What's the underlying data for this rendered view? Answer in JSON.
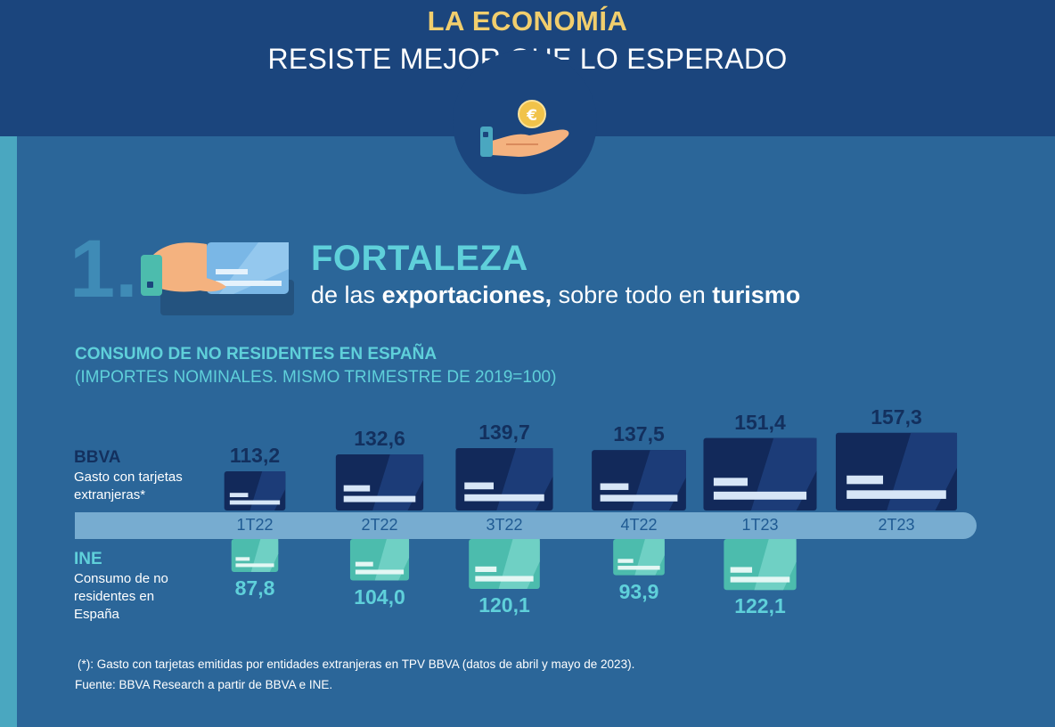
{
  "header": {
    "title_line1": "LA ECONOMÍA",
    "title_line2": "RESISTE MEJOR QUE LO ESPERADO"
  },
  "section": {
    "number": "1.",
    "heading": "FORTALEZA",
    "sub_pre": "de las ",
    "sub_bold1": "exportaciones,",
    "sub_mid": " sobre todo en ",
    "sub_bold2": "turismo"
  },
  "icons": {
    "coin_symbol": "€"
  },
  "chart_data": {
    "type": "bar",
    "title": "CONSUMO DE NO RESIDENTES EN ESPAÑA",
    "subtitle": "(IMPORTES NOMINALES. MISMO TRIMESTRE DE 2019=100)",
    "categories": [
      "1T22",
      "2T22",
      "3T22",
      "4T22",
      "1T23",
      "2T23"
    ],
    "series": [
      {
        "name": "BBVA",
        "description": "Gasto con tarjetas extranjeras*",
        "values": [
          113.2,
          132.6,
          139.7,
          137.5,
          151.4,
          157.3
        ],
        "labels": [
          "113,2",
          "132,6",
          "139,7",
          "137,5",
          "151,4",
          "157,3"
        ],
        "color": "#12295a"
      },
      {
        "name": "INE",
        "description": "Consumo de no residentes en España",
        "values": [
          87.8,
          104.0,
          120.1,
          93.9,
          122.1,
          null
        ],
        "labels": [
          "87,8",
          "104,0",
          "120,1",
          "93,9",
          "122,1",
          null
        ],
        "color": "#4cbcad"
      }
    ]
  },
  "footnote": "(*): Gasto con tarjetas emitidas por entidades extranjeras en TPV BBVA (datos de abril y mayo de 2023).",
  "source": "Fuente: BBVA Research a partir de BBVA e INE."
}
